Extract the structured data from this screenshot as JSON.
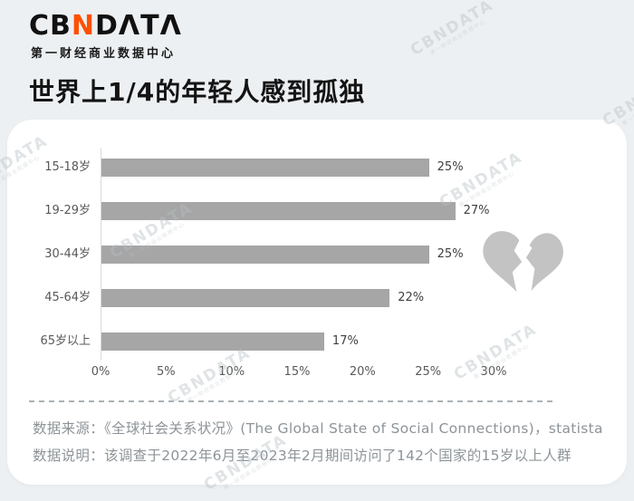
{
  "brand": {
    "logo_prefix": "CB",
    "logo_accent": "N",
    "logo_suffix": "DΛTΛ",
    "logo_subtitle": "第一财经商业数据中心",
    "accent_color": "#ff5000"
  },
  "title": "世界上1/4的年轻人感到孤独",
  "watermark": {
    "text": "CBNDATA",
    "subtext": "第一财经商业数据中心"
  },
  "chart_data": {
    "type": "bar",
    "orientation": "horizontal",
    "categories": [
      "15-18岁",
      "19-29岁",
      "30-44岁",
      "45-64岁",
      "65岁以上"
    ],
    "values": [
      25,
      27,
      25,
      22,
      17
    ],
    "value_labels": [
      "25%",
      "27%",
      "25%",
      "22%",
      "17%"
    ],
    "x_ticks": [
      "0%",
      "5%",
      "10%",
      "15%",
      "20%",
      "25%",
      "30%"
    ],
    "x_tick_values": [
      0,
      5,
      10,
      15,
      20,
      25,
      30
    ],
    "xlim": [
      0,
      30
    ],
    "bar_color": "#a6a6a6",
    "grid": false,
    "legend": "none",
    "annotation_icon": "broken-heart"
  },
  "footer": {
    "source_line": "数据来源：《全球社会关系状况》(The Global State of Social Connections)，statista",
    "note_line": "数据说明：该调查于2022年6月至2023年2月期间访问了142个国家的15岁以上人群"
  }
}
